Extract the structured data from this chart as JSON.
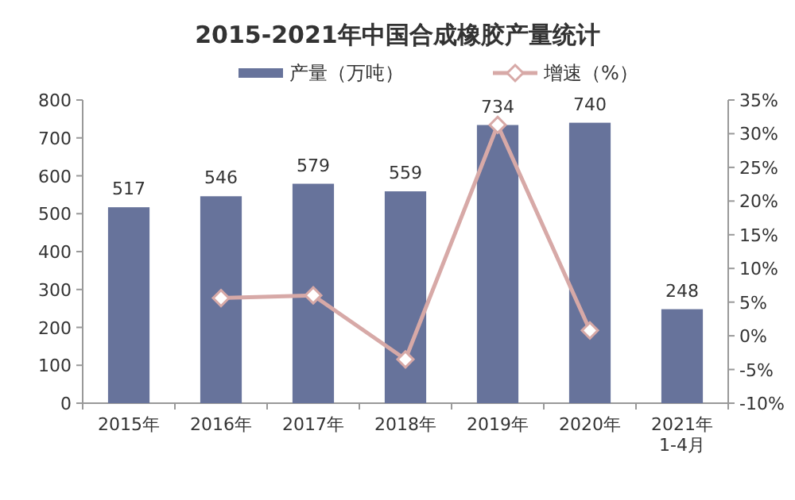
{
  "chart_data": {
    "type": "bar",
    "title": "2015-2021年中国合成橡胶产量统计",
    "categories": [
      "2015年",
      "2016年",
      "2017年",
      "2018年",
      "2019年",
      "2020年",
      "2021年\n1-4月"
    ],
    "series": [
      {
        "name": "产量（万吨）",
        "color": "#67739b",
        "values": [
          517,
          546,
          579,
          559,
          734,
          740,
          248
        ],
        "value_labels": [
          "517",
          "546",
          "579",
          "559",
          "734",
          "740",
          "248"
        ]
      },
      {
        "name": "增速（%）",
        "type": "line",
        "axis": "y2",
        "color": "#d7a9a7",
        "marker": "diamond",
        "values": [
          null,
          5.6,
          6.0,
          -3.5,
          31.3,
          0.8,
          null
        ]
      }
    ],
    "ylim": [
      0,
      800
    ],
    "yticks": [
      0,
      100,
      200,
      300,
      400,
      500,
      600,
      700,
      800
    ],
    "y2lim": [
      -10,
      35
    ],
    "y2ticks": [
      {
        "value": -10,
        "label": "-10%"
      },
      {
        "value": -5,
        "label": "-5%"
      },
      {
        "value": 0,
        "label": "0%"
      },
      {
        "value": 5,
        "label": "5%"
      },
      {
        "value": 10,
        "label": "10%"
      },
      {
        "value": 15,
        "label": "15%"
      },
      {
        "value": 20,
        "label": "20%"
      },
      {
        "value": 25,
        "label": "25%"
      },
      {
        "value": 30,
        "label": "30%"
      },
      {
        "value": 35,
        "label": "35%"
      }
    ],
    "legend": "top"
  }
}
